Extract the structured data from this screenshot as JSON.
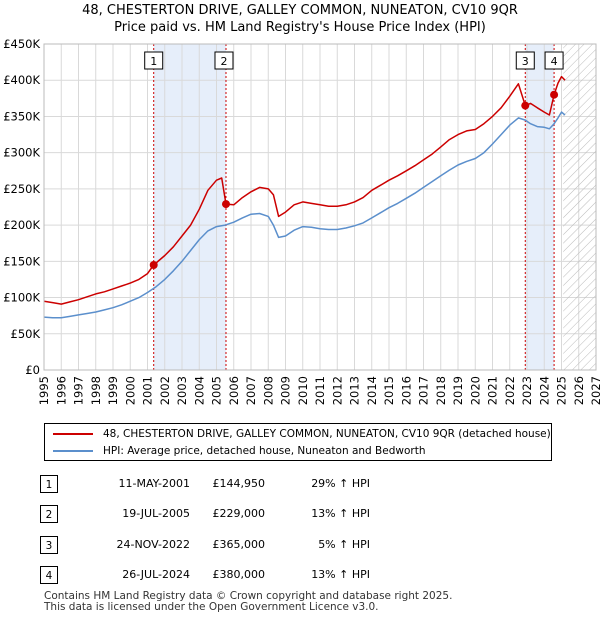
{
  "title_line1": "48, CHESTERTON DRIVE, GALLEY COMMON, NUNEATON, CV10 9QR",
  "title_line2": "Price paid vs. HM Land Registry's House Price Index (HPI)",
  "colors": {
    "property": "#cc0000",
    "hpi": "#5b8fcc",
    "shade": "#e6eefa",
    "marker": "#cc0000"
  },
  "legend": {
    "property": "48, CHESTERTON DRIVE, GALLEY COMMON, NUNEATON, CV10 9QR (detached house)",
    "hpi": "HPI: Average price, detached house, Nuneaton and Bedworth"
  },
  "sales": [
    {
      "num": "1",
      "date": "11-MAY-2001",
      "price": "£144,950",
      "pct": "29% ↑ HPI"
    },
    {
      "num": "2",
      "date": "19-JUL-2005",
      "price": "£229,000",
      "pct": "13% ↑ HPI"
    },
    {
      "num": "3",
      "date": "24-NOV-2022",
      "price": "£365,000",
      "pct": "5% ↑ HPI"
    },
    {
      "num": "4",
      "date": "26-JUL-2024",
      "price": "£380,000",
      "pct": "13% ↑ HPI"
    }
  ],
  "footer_line1": "Contains HM Land Registry data © Crown copyright and database right 2025.",
  "footer_line2": "This data is licensed under the Open Government Licence v3.0.",
  "chart_data": {
    "type": "line",
    "xlim": [
      1995,
      2027
    ],
    "ylim": [
      0,
      450000
    ],
    "yticks": [
      0,
      50000,
      100000,
      150000,
      200000,
      250000,
      300000,
      350000,
      400000,
      450000
    ],
    "ytick_labels": [
      "£0",
      "£50K",
      "£100K",
      "£150K",
      "£200K",
      "£250K",
      "£300K",
      "£350K",
      "£400K",
      "£450K"
    ],
    "xticks": [
      1995,
      1996,
      1997,
      1998,
      1999,
      2000,
      2001,
      2002,
      2003,
      2004,
      2005,
      2006,
      2007,
      2008,
      2009,
      2010,
      2011,
      2012,
      2013,
      2014,
      2015,
      2016,
      2017,
      2018,
      2019,
      2020,
      2021,
      2022,
      2023,
      2024,
      2025,
      2026,
      2027
    ],
    "shaded_periods": [
      [
        2001.36,
        2005.55
      ],
      [
        2022.9,
        2024.57
      ]
    ],
    "future_hatch_from": 2025.1,
    "series": [
      {
        "name": "property",
        "x": [
          1995,
          1995.5,
          1996,
          1996.5,
          1997,
          1997.5,
          1998,
          1998.5,
          1999,
          1999.5,
          2000,
          2000.5,
          2001,
          2001.36,
          2002,
          2002.5,
          2003,
          2003.5,
          2004,
          2004.5,
          2005,
          2005.3,
          2005.55,
          2006,
          2006.5,
          2007,
          2007.5,
          2008,
          2008.3,
          2008.6,
          2009,
          2009.5,
          2010,
          2010.5,
          2011,
          2011.5,
          2012,
          2012.5,
          2013,
          2013.5,
          2014,
          2014.5,
          2015,
          2015.5,
          2016,
          2016.5,
          2017,
          2017.5,
          2018,
          2018.5,
          2019,
          2019.5,
          2020,
          2020.5,
          2021,
          2021.5,
          2022,
          2022.5,
          2022.9,
          2023.2,
          2023.6,
          2024,
          2024.3,
          2024.57,
          2024.8,
          2025,
          2025.2
        ],
        "values": [
          95000,
          93000,
          91000,
          94000,
          97000,
          101000,
          105000,
          108000,
          112000,
          116000,
          120000,
          125000,
          133000,
          144950,
          158000,
          170000,
          185000,
          200000,
          222000,
          248000,
          262000,
          265000,
          229000,
          228000,
          238000,
          246000,
          252000,
          250000,
          242000,
          212000,
          218000,
          228000,
          232000,
          230000,
          228000,
          226000,
          226000,
          228000,
          232000,
          238000,
          248000,
          255000,
          262000,
          268000,
          275000,
          282000,
          290000,
          298000,
          308000,
          318000,
          325000,
          330000,
          332000,
          340000,
          350000,
          362000,
          378000,
          395000,
          365000,
          368000,
          362000,
          356000,
          352000,
          380000,
          396000,
          405000,
          400000
        ]
      },
      {
        "name": "hpi",
        "x": [
          1995,
          1995.5,
          1996,
          1996.5,
          1997,
          1997.5,
          1998,
          1998.5,
          1999,
          1999.5,
          2000,
          2000.5,
          2001,
          2001.5,
          2002,
          2002.5,
          2003,
          2003.5,
          2004,
          2004.5,
          2005,
          2005.5,
          2006,
          2006.5,
          2007,
          2007.5,
          2008,
          2008.3,
          2008.6,
          2009,
          2009.5,
          2010,
          2010.5,
          2011,
          2011.5,
          2012,
          2012.5,
          2013,
          2013.5,
          2014,
          2014.5,
          2015,
          2015.5,
          2016,
          2016.5,
          2017,
          2017.5,
          2018,
          2018.5,
          2019,
          2019.5,
          2020,
          2020.5,
          2021,
          2021.5,
          2022,
          2022.5,
          2022.9,
          2023.2,
          2023.6,
          2024,
          2024.3,
          2024.57,
          2024.8,
          2025,
          2025.2
        ],
        "values": [
          73000,
          72000,
          72000,
          74000,
          76000,
          78000,
          80000,
          83000,
          86000,
          90000,
          95000,
          100000,
          107000,
          115000,
          125000,
          137000,
          150000,
          165000,
          180000,
          192000,
          198000,
          200000,
          204000,
          210000,
          215000,
          216000,
          212000,
          200000,
          183000,
          185000,
          193000,
          198000,
          197000,
          195000,
          194000,
          194000,
          196000,
          199000,
          203000,
          210000,
          217000,
          224000,
          230000,
          237000,
          244000,
          252000,
          260000,
          268000,
          276000,
          283000,
          288000,
          292000,
          300000,
          312000,
          325000,
          338000,
          348000,
          345000,
          340000,
          336000,
          335000,
          333000,
          340000,
          348000,
          356000,
          352000
        ]
      }
    ],
    "markers": [
      {
        "label": "1",
        "x": 2001.36,
        "y": 144950
      },
      {
        "label": "2",
        "x": 2005.55,
        "y": 229000
      },
      {
        "label": "3",
        "x": 2022.9,
        "y": 365000
      },
      {
        "label": "4",
        "x": 2024.57,
        "y": 380000
      }
    ]
  }
}
